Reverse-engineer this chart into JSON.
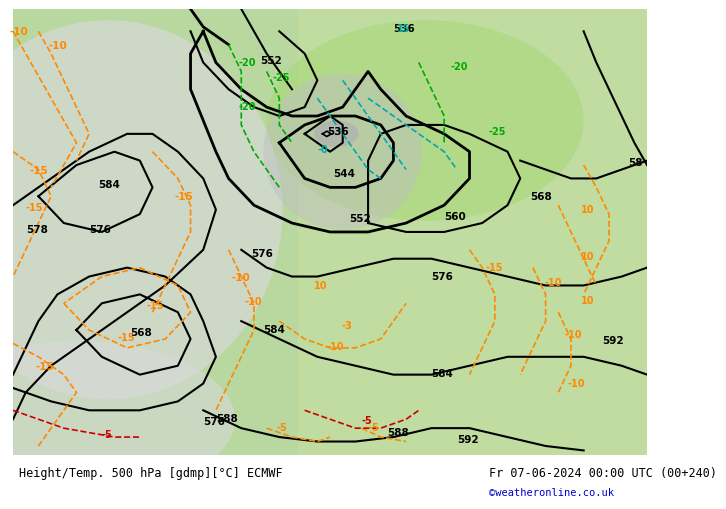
{
  "title_left": "Height/Temp. 500 hPa [gdmp][°C] ECMWF",
  "title_right": "Fr 07-06-2024 00:00 UTC (00+240)",
  "credit": "©weatheronline.co.uk",
  "credit_color": "#0000cc",
  "fig_bg": "#ffffff"
}
